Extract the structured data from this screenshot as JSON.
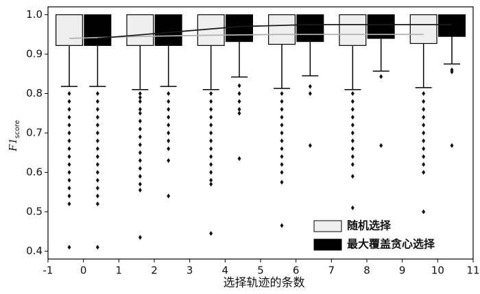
{
  "chart_data": {
    "type": "box",
    "x_label": "选择轨迹的条数",
    "y_label": "F1",
    "y_label_sub": "score",
    "xlim": [
      -1,
      11
    ],
    "xticks": [
      -1,
      0,
      1,
      2,
      3,
      4,
      5,
      6,
      7,
      8,
      9,
      10,
      11
    ],
    "ylim": [
      0.38,
      1.02
    ],
    "yticks": [
      0.4,
      0.5,
      0.6,
      0.7,
      0.8,
      0.9,
      {
        "value": 1,
        "label": "1.0"
      }
    ],
    "legend": "lower right",
    "series": [
      {
        "name": "随机选择",
        "color": "#efefef",
        "line_color": "#b0b0b0",
        "x": [
          -0.4,
          1.6,
          3.6,
          5.6,
          7.6,
          9.6
        ],
        "q1": [
          0.922,
          0.922,
          0.922,
          0.925,
          0.922,
          0.927
        ],
        "median": [
          0.94,
          0.945,
          0.948,
          0.95,
          0.95,
          0.95
        ],
        "q3": [
          1,
          1,
          1,
          1,
          1,
          1
        ],
        "whisker_low": [
          0.818,
          0.81,
          0.81,
          0.813,
          0.81,
          0.815
        ],
        "outliers": [
          [
            0.8,
            0.78,
            0.76,
            0.74,
            0.72,
            0.7,
            0.68,
            0.66,
            0.64,
            0.62,
            0.6,
            0.58,
            0.56,
            0.54,
            0.52,
            0.41
          ],
          [
            0.8,
            0.79,
            0.78,
            0.76,
            0.75,
            0.73,
            0.71,
            0.69,
            0.67,
            0.65,
            0.63,
            0.61,
            0.59,
            0.57,
            0.555,
            0.435
          ],
          [
            0.8,
            0.78,
            0.76,
            0.74,
            0.72,
            0.7,
            0.68,
            0.66,
            0.64,
            0.62,
            0.6,
            0.58,
            0.57,
            0.445
          ],
          [
            0.8,
            0.78,
            0.76,
            0.74,
            0.72,
            0.7,
            0.68,
            0.66,
            0.64,
            0.62,
            0.6,
            0.575,
            0.465
          ],
          [
            0.8,
            0.78,
            0.76,
            0.74,
            0.72,
            0.7,
            0.68,
            0.66,
            0.64,
            0.62,
            0.59,
            0.51
          ],
          [
            0.8,
            0.78,
            0.76,
            0.74,
            0.72,
            0.7,
            0.68,
            0.66,
            0.64,
            0.62,
            0.6,
            0.5
          ]
        ]
      },
      {
        "name": "最大覆盖贪心选择",
        "color": "#000000",
        "line_color": "#1a1a1a",
        "x": [
          0.4,
          2.4,
          4.4,
          6.4,
          8.4,
          10.4
        ],
        "q1": [
          0.922,
          0.922,
          0.932,
          0.932,
          0.94,
          0.945
        ],
        "median": [
          0.94,
          0.955,
          0.97,
          0.975,
          0.975,
          0.975
        ],
        "q3": [
          1,
          1,
          1,
          1,
          1,
          1
        ],
        "whisker_low": [
          0.818,
          0.818,
          0.842,
          0.845,
          0.857,
          0.875
        ],
        "outliers": [
          [
            0.8,
            0.78,
            0.76,
            0.74,
            0.72,
            0.7,
            0.68,
            0.66,
            0.64,
            0.62,
            0.6,
            0.58,
            0.56,
            0.54,
            0.52,
            0.41
          ],
          [
            0.8,
            0.78,
            0.76,
            0.74,
            0.72,
            0.7,
            0.68,
            0.66,
            0.63,
            0.54
          ],
          [
            0.82,
            0.8,
            0.78,
            0.76,
            0.75,
            0.635
          ],
          [
            0.818,
            0.8,
            0.668
          ],
          [
            0.843,
            0.668
          ],
          [
            0.86,
            0.855,
            0.668
          ]
        ]
      }
    ]
  }
}
